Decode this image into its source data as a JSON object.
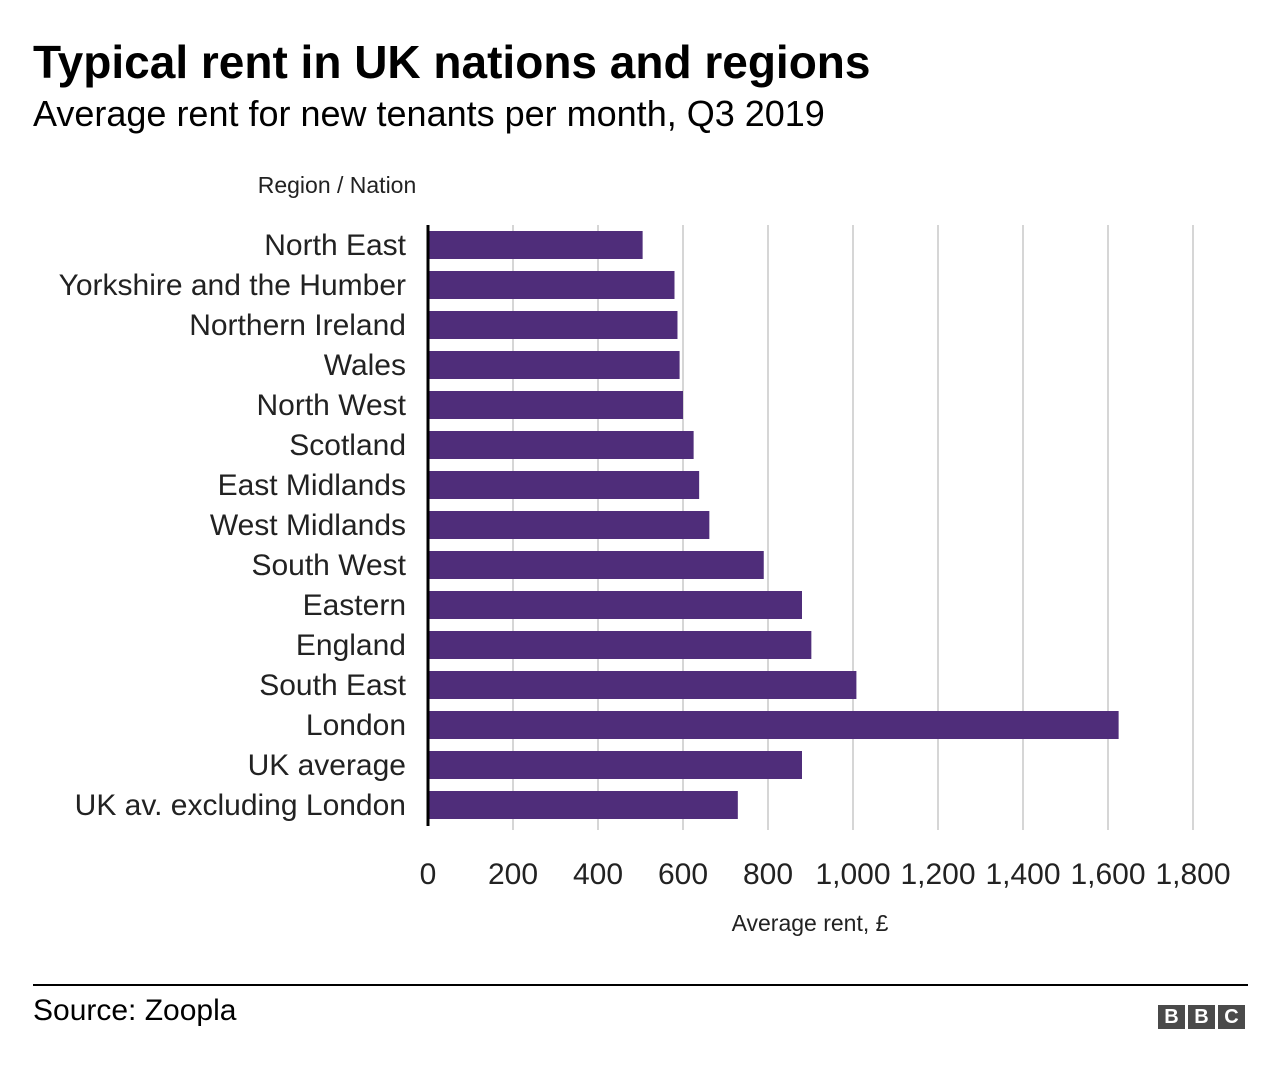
{
  "header": {
    "title": "Typical rent in UK nations and regions",
    "subtitle": "Average rent for new tenants per month, Q3 2019"
  },
  "footer": {
    "source": "Source: Zoopla",
    "logo_letters": [
      "B",
      "B",
      "C"
    ]
  },
  "colors": {
    "bar": "#4f2d7a",
    "gridline": "#d6d6d6",
    "axis": "#000000",
    "label_text": "#222222",
    "logo_bg": "#4a4a4a"
  },
  "chart_data": {
    "type": "bar",
    "orientation": "horizontal",
    "ylabel": "Region / Nation",
    "xlabel": "Average rent, £",
    "xlim": [
      0,
      1800
    ],
    "xticks": [
      0,
      200,
      400,
      600,
      800,
      1000,
      1200,
      1400,
      1600,
      1800
    ],
    "xtick_labels": [
      "0",
      "200",
      "400",
      "600",
      "800",
      "1,000",
      "1,200",
      "1,400",
      "1,600",
      "1,800"
    ],
    "grid": "vertical",
    "legend": "none",
    "categories": [
      "North East",
      "Yorkshire and the Humber",
      "Northern Ireland",
      "Wales",
      "North West",
      "Scotland",
      "East Midlands",
      "West Midlands",
      "South West",
      "Eastern",
      "England",
      "South East",
      "London",
      "UK average",
      "UK av. excluding London"
    ],
    "values": [
      505,
      580,
      587,
      592,
      600,
      625,
      638,
      662,
      790,
      880,
      902,
      1008,
      1625,
      880,
      729
    ]
  }
}
